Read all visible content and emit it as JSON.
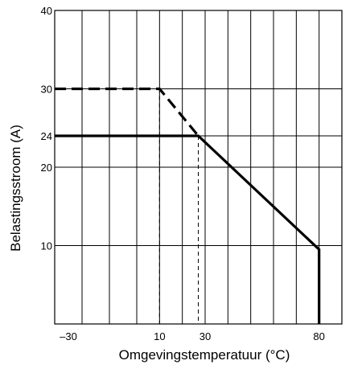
{
  "chart_data": {
    "type": "line",
    "xlabel": "Omgevingstemperatuur (°C)",
    "ylabel": "Belastingsstroom (A)",
    "xlim": [
      -36,
      90
    ],
    "ylim": [
      0,
      40
    ],
    "x_ticks": [
      {
        "value": -30,
        "label": "–30"
      },
      {
        "value": 10,
        "label": "10"
      },
      {
        "value": 30,
        "label": "30"
      },
      {
        "value": 80,
        "label": "80"
      }
    ],
    "y_ticks": [
      {
        "value": 10,
        "label": "10"
      },
      {
        "value": 20,
        "label": "20"
      },
      {
        "value": 24,
        "label": "24"
      },
      {
        "value": 30,
        "label": "30"
      },
      {
        "value": 40,
        "label": "40"
      }
    ],
    "grid": true,
    "x_grid": [
      -24,
      -12,
      0,
      10,
      20,
      30,
      40,
      50,
      60,
      70,
      80
    ],
    "y_grid": [
      10,
      20,
      24,
      30
    ],
    "series": [
      {
        "style": "dashed",
        "points": [
          [
            -36,
            30
          ],
          [
            10,
            30
          ],
          [
            27,
            24
          ]
        ]
      },
      {
        "style": "solid",
        "points": [
          [
            -36,
            24
          ],
          [
            27,
            24
          ],
          [
            80,
            9.5
          ],
          [
            80,
            0
          ]
        ]
      }
    ],
    "guides": [
      {
        "style": "dashed-thin",
        "points": [
          [
            10,
            30
          ],
          [
            10,
            0
          ]
        ]
      },
      {
        "style": "dashed-thin",
        "points": [
          [
            27,
            24
          ],
          [
            27,
            0
          ]
        ]
      }
    ]
  }
}
